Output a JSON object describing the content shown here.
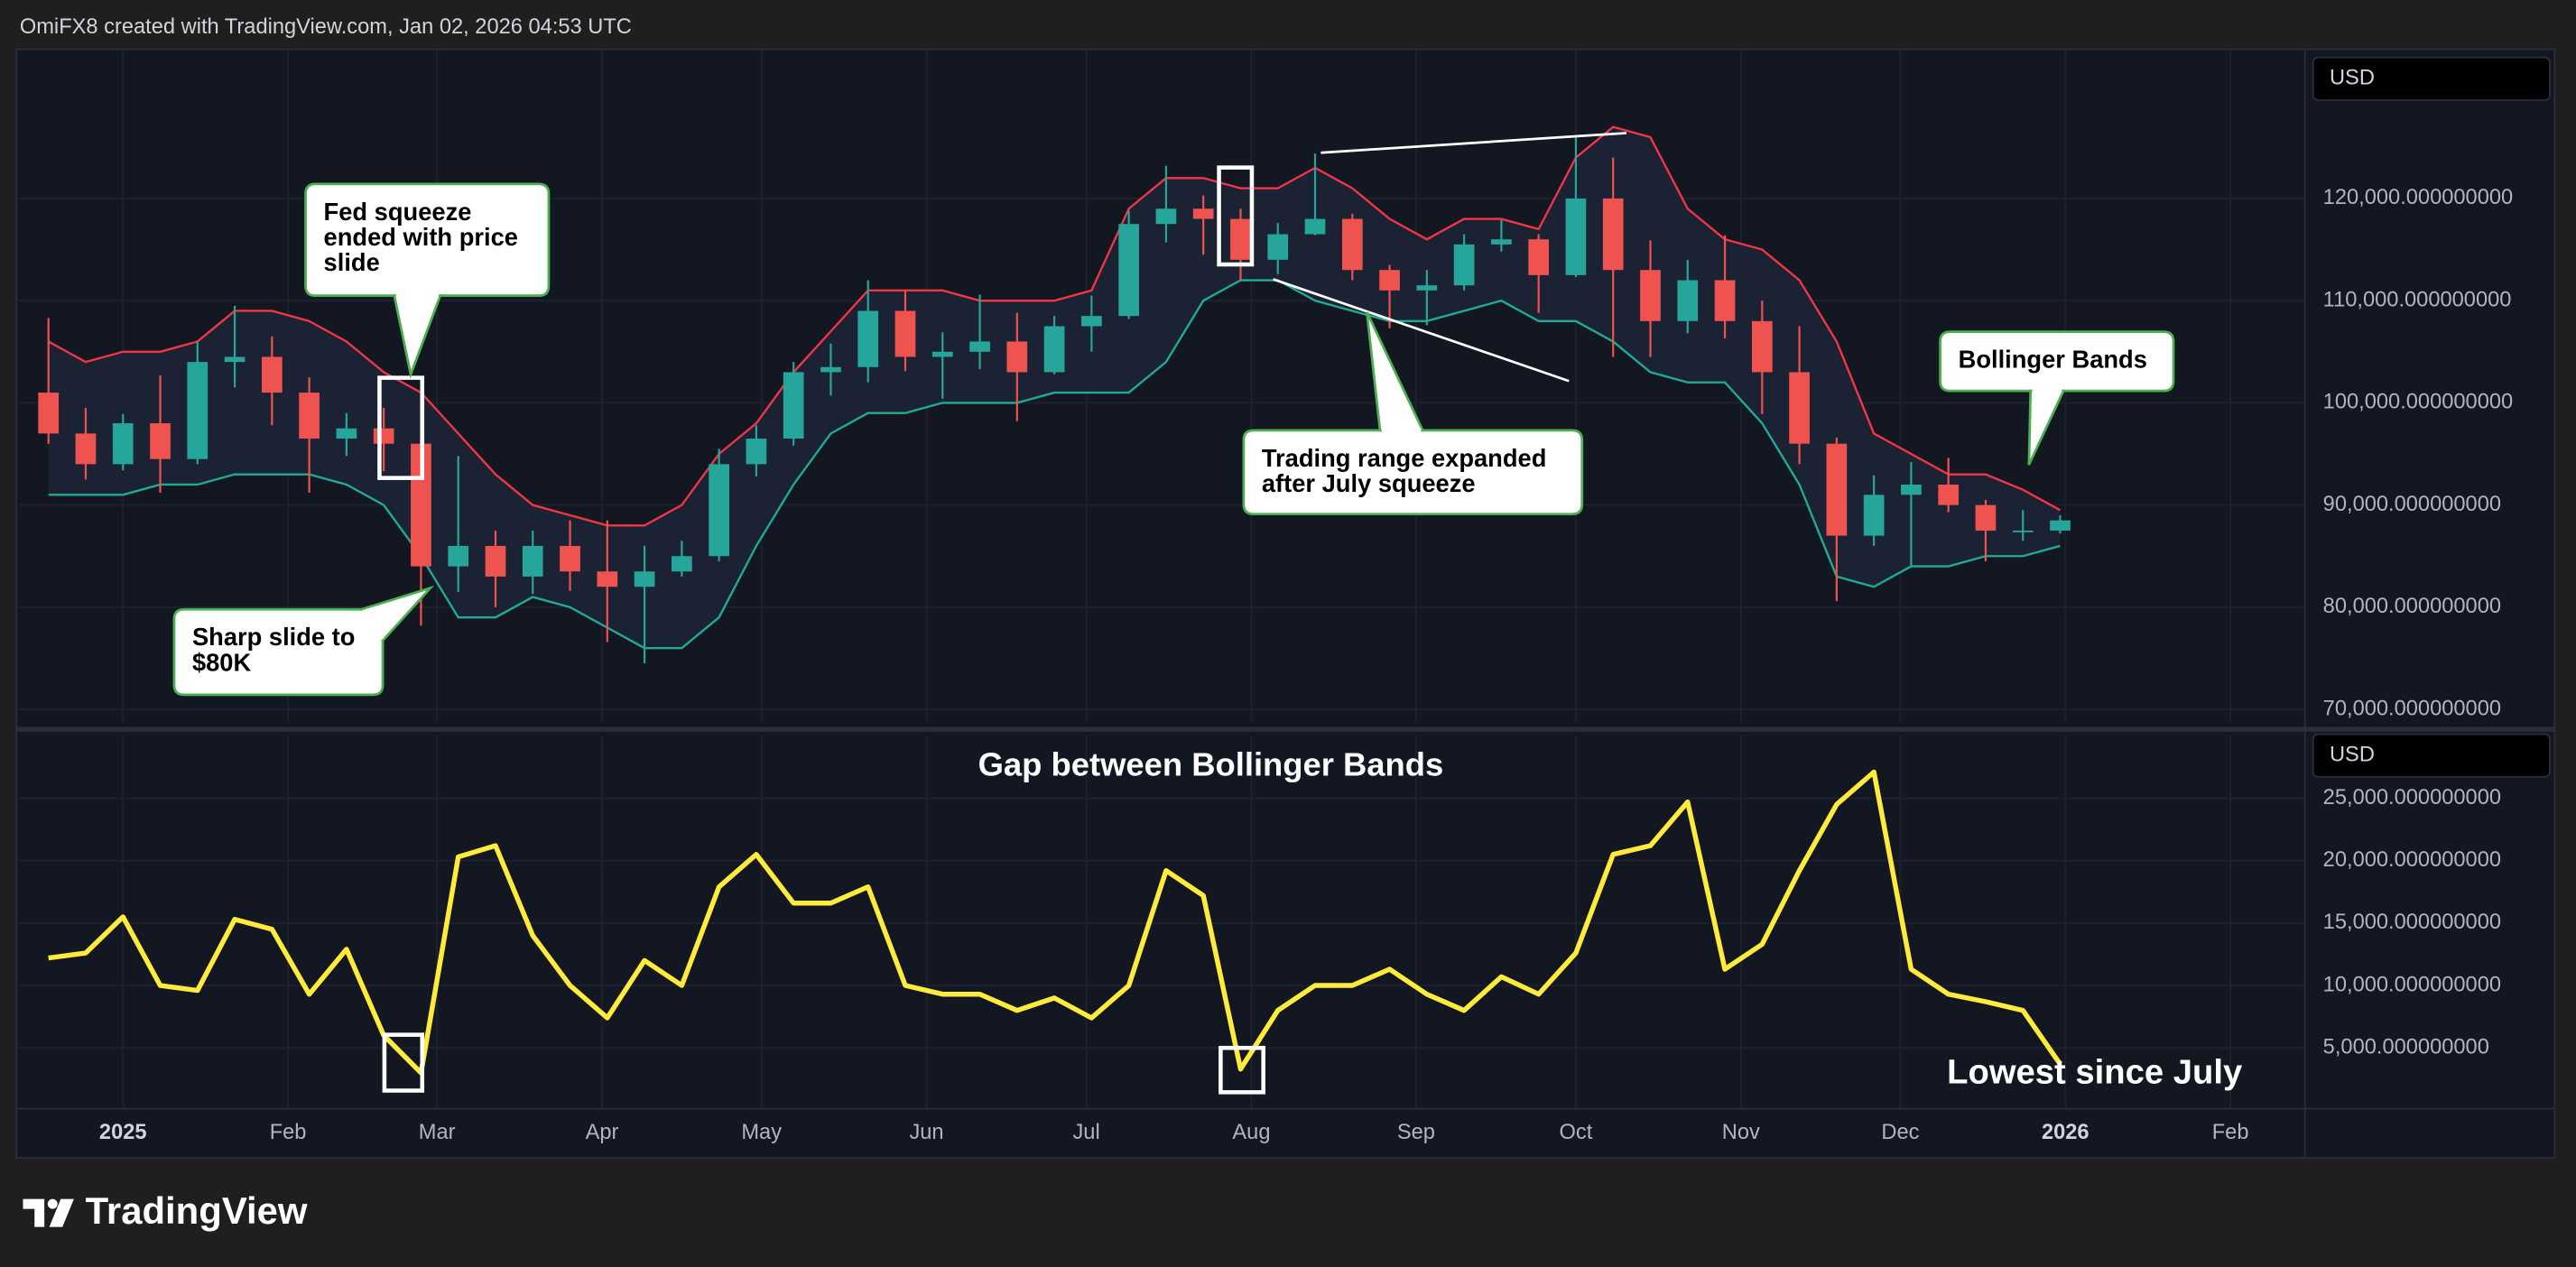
{
  "header": "OmiFX8 created with TradingView.com, Jan 02, 2026 04:53 UTC",
  "footer": {
    "logo": "TradingView"
  },
  "chart_data": [
    {
      "type": "candlestick",
      "currency": "USD",
      "xlim": [
        -0.86,
        60.57
      ],
      "ylim": [
        68700,
        134600
      ],
      "yticks": [
        {
          "value": 70000,
          "label": "70,000.000000000"
        },
        {
          "value": 80000,
          "label": "80,000.000000000"
        },
        {
          "value": 90000,
          "label": "90,000.000000000"
        },
        {
          "value": 100000,
          "label": "100,000.000000000"
        },
        {
          "value": 110000,
          "label": "110,000.000000000"
        },
        {
          "value": 120000,
          "label": "120,000.000000000"
        }
      ],
      "grid": true,
      "up_color": "#26a69a",
      "down_color": "#ef5350",
      "open": [
        101000,
        97000,
        94000,
        98000,
        94500,
        104000,
        104500,
        101000,
        96500,
        97500,
        96000,
        84000,
        86000,
        83000,
        86000,
        83500,
        82000,
        83500,
        85000,
        94000,
        96500,
        103000,
        103500,
        109000,
        104500,
        105000,
        106000,
        103000,
        107500,
        108500,
        117500,
        119000,
        118000,
        114000,
        116500,
        118000,
        113000,
        111000,
        111500,
        115500,
        116000,
        112500,
        120000,
        113000,
        108000,
        112000,
        108000,
        103000,
        96000,
        87000,
        91000,
        92000,
        90000,
        87500,
        87500
      ],
      "high": [
        108300,
        99500,
        98900,
        102700,
        106000,
        109500,
        106500,
        102500,
        99000,
        99500,
        96500,
        94800,
        87500,
        87500,
        88500,
        88500,
        86000,
        86500,
        95500,
        97800,
        104000,
        105800,
        112000,
        111000,
        106900,
        110600,
        108800,
        108500,
        110500,
        118800,
        123200,
        120300,
        119000,
        117600,
        124400,
        118500,
        113500,
        113000,
        116500,
        117900,
        116500,
        126200,
        124000,
        115900,
        114000,
        116400,
        110000,
        107500,
        96600,
        92900,
        94200,
        94600,
        90500,
        89500,
        89000
      ],
      "low": [
        96000,
        92500,
        93400,
        91200,
        94000,
        101500,
        97800,
        91200,
        94800,
        93300,
        78200,
        81500,
        80000,
        81300,
        81600,
        76600,
        74500,
        83000,
        84500,
        92800,
        95800,
        100700,
        102000,
        103100,
        100400,
        103300,
        98200,
        102800,
        105000,
        108200,
        115700,
        114500,
        112000,
        112600,
        116400,
        112000,
        107300,
        107600,
        111000,
        114800,
        108800,
        112300,
        104500,
        104500,
        106800,
        106300,
        98900,
        94000,
        80600,
        86000,
        84000,
        89300,
        84500,
        86500,
        87200
      ],
      "close": [
        97000,
        94000,
        98000,
        94500,
        104000,
        104500,
        101000,
        96500,
        97500,
        96000,
        84000,
        86000,
        83000,
        86000,
        83500,
        82000,
        83500,
        85000,
        94000,
        96500,
        103000,
        103500,
        109000,
        104500,
        105000,
        106000,
        103000,
        107500,
        108500,
        117500,
        119000,
        118000,
        114000,
        116500,
        118000,
        113000,
        111000,
        111500,
        115500,
        116000,
        112500,
        120000,
        113000,
        108000,
        112000,
        108000,
        103000,
        96000,
        87000,
        91000,
        92000,
        90000,
        87500,
        87500,
        88500
      ],
      "upper_band": {
        "color": "#f23645",
        "values": [
          106000,
          104000,
          105000,
          105000,
          106000,
          109000,
          109000,
          108000,
          106000,
          103000,
          101000,
          97000,
          93000,
          90000,
          89000,
          88000,
          88000,
          90000,
          95000,
          98000,
          103000,
          107000,
          111000,
          111000,
          111000,
          110000,
          110000,
          110000,
          111000,
          119000,
          122000,
          122000,
          121000,
          121000,
          123000,
          121000,
          118000,
          116000,
          118000,
          118000,
          117000,
          124000,
          127000,
          126000,
          119000,
          116000,
          115000,
          112000,
          106000,
          97000,
          95000,
          93000,
          93000,
          91500,
          89500
        ]
      },
      "lower_band": {
        "color": "#22ab94",
        "values": [
          91000,
          91000,
          91000,
          92000,
          92000,
          93000,
          93000,
          93000,
          92000,
          90000,
          85000,
          79000,
          79000,
          81000,
          80000,
          78000,
          76000,
          76000,
          79000,
          86000,
          92000,
          97000,
          99000,
          99000,
          100000,
          100000,
          100000,
          101000,
          101000,
          101000,
          104000,
          110000,
          112000,
          112000,
          110000,
          109000,
          108000,
          108000,
          109000,
          110000,
          108000,
          108000,
          106000,
          103000,
          102000,
          102000,
          98000,
          92000,
          83000,
          82000,
          84000,
          84000,
          85000,
          85000,
          86000
        ]
      },
      "band_fill": "#1a2233",
      "annotations": [
        {
          "lines": [
            "Fed squeeze",
            "ended with price",
            "slide"
          ]
        },
        {
          "lines": [
            "Sharp slide to",
            "$80K"
          ]
        },
        {
          "lines": [
            "Trading range expanded",
            "after July squeeze"
          ]
        },
        {
          "lines": [
            "Bollinger Bands"
          ]
        }
      ]
    },
    {
      "type": "line",
      "currency": "USD",
      "title": "Gap between Bollinger Bands",
      "note": "Lowest since July",
      "xlim": [
        -0.86,
        60.57
      ],
      "ylim": [
        130,
        30000
      ],
      "xticks": [
        {
          "value": 2,
          "label": "2025"
        },
        {
          "value": 6.43,
          "label": "Feb"
        },
        {
          "value": 10.43,
          "label": "Mar"
        },
        {
          "value": 14.86,
          "label": "Apr"
        },
        {
          "value": 19.14,
          "label": "May"
        },
        {
          "value": 23.57,
          "label": "Jun"
        },
        {
          "value": 27.86,
          "label": "Jul"
        },
        {
          "value": 32.29,
          "label": "Aug"
        },
        {
          "value": 36.71,
          "label": "Sep"
        },
        {
          "value": 41,
          "label": "Oct"
        },
        {
          "value": 45.43,
          "label": "Nov"
        },
        {
          "value": 49.71,
          "label": "Dec"
        },
        {
          "value": 54.14,
          "label": "2026"
        },
        {
          "value": 58.57,
          "label": "Feb"
        }
      ],
      "yticks": [
        {
          "value": 5000,
          "label": "5,000.000000000"
        },
        {
          "value": 10000,
          "label": "10,000.000000000"
        },
        {
          "value": 15000,
          "label": "15,000.000000000"
        },
        {
          "value": 20000,
          "label": "20,000.000000000"
        },
        {
          "value": 25000,
          "label": "25,000.000000000"
        }
      ],
      "grid": true,
      "color": "#ffeb3b",
      "values": [
        12200,
        12600,
        15500,
        10000,
        9600,
        15300,
        14500,
        9300,
        12900,
        6000,
        3000,
        20300,
        21200,
        14000,
        10000,
        7400,
        12000,
        10000,
        17900,
        20500,
        16600,
        16600,
        17900,
        10000,
        9300,
        9300,
        8000,
        9000,
        7400,
        10000,
        19200,
        17200,
        3300,
        8000,
        10000,
        10000,
        11300,
        9300,
        8000,
        10700,
        9300,
        12600,
        20500,
        21200,
        24700,
        11300,
        13300,
        19200,
        24500,
        27100,
        11300,
        9300,
        8700,
        8000,
        3700
      ]
    }
  ]
}
